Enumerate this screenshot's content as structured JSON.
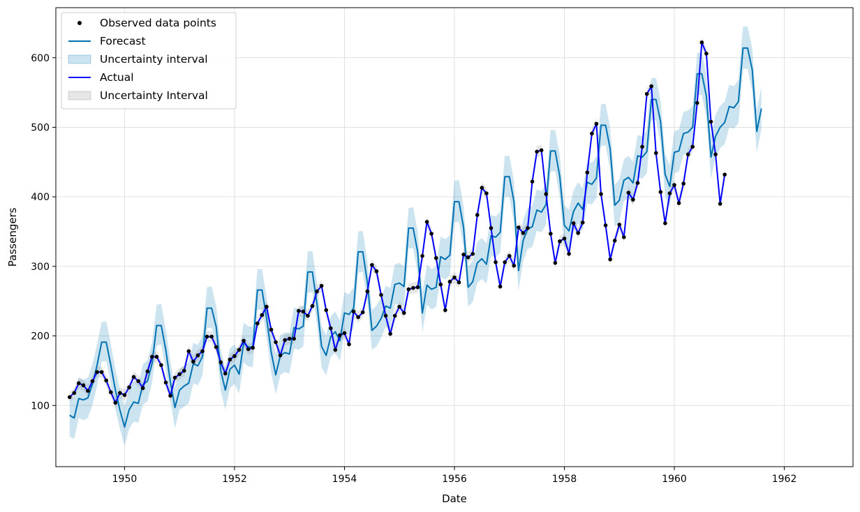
{
  "chart_data": {
    "type": "line",
    "title": "",
    "xlabel": "Date",
    "ylabel": "Passengers",
    "xlim": [
      1948.75,
      1963.25
    ],
    "ylim": [
      12,
      672
    ],
    "grid": true,
    "legend_position": "top-left",
    "x_ticks": [
      1950,
      1952,
      1954,
      1956,
      1958,
      1960,
      1962
    ],
    "x_tick_labels": [
      "1950",
      "1952",
      "1954",
      "1956",
      "1958",
      "1960",
      "1962"
    ],
    "y_ticks": [
      100,
      200,
      300,
      400,
      500,
      600
    ],
    "y_tick_labels": [
      "100",
      "200",
      "300",
      "400",
      "500",
      "600"
    ],
    "colors": {
      "observed": "#000000",
      "forecast": "#0072B2",
      "forecast_band": "#0072B2",
      "actual": "#0000ff",
      "actual_band": "#808080"
    },
    "legend": [
      {
        "label": "Observed data points",
        "marker": "point",
        "color": "#000000"
      },
      {
        "label": "Forecast",
        "marker": "line",
        "color": "#0072B2"
      },
      {
        "label": "Uncertainty interval",
        "marker": "patch",
        "color": "#0072B2"
      },
      {
        "label": "Actual",
        "marker": "line",
        "color": "#0000ff"
      },
      {
        "label": "Uncertainty Interval",
        "marker": "patch",
        "color": "#808080"
      }
    ],
    "x_start": 1949.0,
    "x_step": 0.08333,
    "observed_values": [
      112,
      118,
      132,
      129,
      121,
      135,
      148,
      148,
      136,
      119,
      104,
      118,
      115,
      126,
      141,
      135,
      125,
      149,
      170,
      170,
      158,
      133,
      114,
      140,
      145,
      150,
      178,
      163,
      172,
      178,
      199,
      199,
      184,
      162,
      146,
      166,
      171,
      180,
      193,
      181,
      183,
      218,
      230,
      242,
      209,
      191,
      172,
      194,
      196,
      196,
      236,
      235,
      229,
      243,
      264,
      272,
      237,
      211,
      180,
      201,
      204,
      188,
      235,
      227,
      234,
      264,
      302,
      293,
      259,
      229,
      203,
      229,
      242,
      233,
      267,
      269,
      270,
      315,
      364,
      347,
      312,
      274,
      237,
      278,
      284,
      277,
      317,
      313,
      318,
      374,
      413,
      405,
      355,
      306,
      271,
      306,
      315,
      301,
      356,
      348,
      355,
      422,
      465,
      467,
      404,
      347,
      305,
      336,
      340,
      318,
      362,
      348,
      363,
      435,
      491,
      505,
      404,
      359,
      310,
      337,
      360,
      342,
      406,
      396,
      420,
      472,
      548,
      559,
      463,
      407,
      362,
      405,
      417,
      391,
      419,
      461,
      472,
      535,
      622,
      606,
      508,
      461,
      390,
      432
    ],
    "forecast": [
      86,
      82,
      110,
      108,
      111,
      131,
      158,
      191,
      191,
      158,
      122,
      93,
      69,
      94,
      105,
      103,
      130,
      135,
      160,
      215,
      215,
      180,
      134,
      97,
      122,
      128,
      132,
      160,
      157,
      170,
      240,
      240,
      213,
      150,
      122,
      152,
      158,
      145,
      190,
      184,
      184,
      266,
      266,
      226,
      177,
      144,
      172,
      176,
      174,
      212,
      210,
      214,
      292,
      292,
      246,
      185,
      172,
      199,
      206,
      193,
      233,
      231,
      240,
      321,
      321,
      277,
      208,
      214,
      225,
      243,
      240,
      274,
      276,
      271,
      355,
      355,
      320,
      233,
      273,
      267,
      270,
      314,
      310,
      316,
      393,
      393,
      356,
      270,
      278,
      305,
      311,
      303,
      344,
      342,
      349,
      429,
      429,
      393,
      294,
      337,
      354,
      357,
      381,
      378,
      389,
      466,
      466,
      429,
      359,
      351,
      379,
      391,
      382,
      421,
      418,
      427,
      503,
      503,
      469,
      388,
      395,
      424,
      428,
      420,
      459,
      457,
      465,
      540,
      540,
      508,
      432,
      415,
      464,
      466,
      491,
      493,
      500,
      577,
      577,
      545,
      457,
      487,
      500,
      507,
      530,
      528,
      537,
      614,
      614,
      583,
      494,
      527
    ],
    "forecast_lower": [
      55,
      52,
      82,
      79,
      82,
      101,
      128,
      163,
      164,
      131,
      94,
      66,
      42,
      66,
      77,
      75,
      101,
      106,
      133,
      186,
      188,
      151,
      107,
      67,
      94,
      98,
      103,
      132,
      129,
      143,
      211,
      212,
      185,
      121,
      94,
      125,
      131,
      117,
      162,
      156,
      155,
      237,
      238,
      198,
      147,
      116,
      144,
      148,
      146,
      182,
      180,
      185,
      262,
      263,
      217,
      155,
      143,
      170,
      176,
      164,
      204,
      201,
      211,
      291,
      292,
      248,
      180,
      185,
      197,
      213,
      210,
      245,
      246,
      242,
      326,
      326,
      290,
      205,
      245,
      238,
      242,
      285,
      281,
      287,
      363,
      364,
      327,
      242,
      249,
      276,
      282,
      275,
      315,
      313,
      320,
      400,
      400,
      363,
      265,
      308,
      325,
      328,
      351,
      349,
      360,
      436,
      437,
      399,
      329,
      322,
      350,
      362,
      352,
      391,
      389,
      398,
      473,
      474,
      439,
      357,
      365,
      394,
      398,
      389,
      428,
      426,
      434,
      510,
      510,
      478,
      401,
      385,
      434,
      436,
      461,
      462,
      469,
      546,
      547,
      514,
      426,
      456,
      470,
      476,
      500,
      498,
      506,
      584,
      584,
      552,
      464,
      497
    ],
    "forecast_upper": [
      115,
      111,
      140,
      137,
      140,
      160,
      188,
      220,
      221,
      188,
      152,
      123,
      98,
      123,
      134,
      132,
      159,
      165,
      190,
      245,
      246,
      209,
      164,
      125,
      152,
      157,
      162,
      190,
      187,
      200,
      270,
      271,
      243,
      180,
      152,
      182,
      188,
      174,
      219,
      214,
      213,
      296,
      296,
      256,
      206,
      174,
      201,
      205,
      204,
      241,
      239,
      244,
      322,
      322,
      276,
      214,
      201,
      228,
      235,
      222,
      263,
      260,
      270,
      350,
      351,
      307,
      237,
      244,
      255,
      272,
      269,
      303,
      305,
      300,
      384,
      385,
      349,
      263,
      302,
      296,
      300,
      343,
      339,
      345,
      423,
      424,
      386,
      300,
      308,
      335,
      341,
      333,
      374,
      372,
      379,
      459,
      459,
      422,
      324,
      367,
      384,
      387,
      411,
      408,
      419,
      496,
      496,
      459,
      388,
      381,
      409,
      421,
      412,
      451,
      449,
      458,
      533,
      534,
      499,
      417,
      425,
      454,
      459,
      450,
      489,
      487,
      496,
      571,
      571,
      539,
      462,
      445,
      494,
      497,
      522,
      524,
      531,
      607,
      608,
      576,
      488,
      518,
      531,
      537,
      561,
      559,
      568,
      645,
      645,
      614,
      525,
      558
    ],
    "actual_lower": [
      105,
      111,
      124,
      121,
      113,
      127,
      140,
      140,
      128,
      111,
      96,
      110,
      107,
      118,
      133,
      127,
      117,
      141,
      162,
      162,
      150,
      125,
      106,
      132,
      137,
      142,
      170,
      155,
      164,
      170,
      191,
      191,
      176,
      154,
      138,
      158,
      163,
      172,
      185,
      173,
      175,
      210,
      222,
      234,
      201,
      183,
      164,
      186,
      188,
      188,
      228,
      227,
      221,
      235,
      256,
      264,
      229,
      203,
      172,
      193,
      196,
      180,
      227,
      219,
      226,
      256,
      294,
      285,
      251,
      221,
      195,
      221,
      234,
      225,
      259,
      261,
      262,
      307,
      356,
      339,
      304,
      266,
      229,
      270,
      276,
      269,
      309,
      305,
      310,
      366,
      405,
      397,
      347,
      298,
      263,
      298,
      307,
      293,
      348,
      340,
      347,
      414,
      457,
      459,
      396,
      339,
      297,
      328,
      332,
      310,
      354,
      340,
      355,
      427,
      483,
      497,
      396,
      351,
      302,
      329,
      352,
      334,
      398,
      388,
      412,
      464,
      540,
      551,
      455,
      399,
      354,
      397,
      409,
      383,
      411,
      453,
      464,
      527,
      614,
      598,
      500,
      453,
      382,
      424
    ],
    "actual_upper": [
      119,
      125,
      140,
      137,
      129,
      143,
      156,
      156,
      144,
      127,
      112,
      126,
      123,
      134,
      149,
      143,
      133,
      157,
      178,
      178,
      166,
      141,
      122,
      148,
      153,
      158,
      186,
      171,
      180,
      186,
      207,
      207,
      192,
      170,
      154,
      174,
      179,
      188,
      201,
      189,
      191,
      226,
      238,
      250,
      217,
      199,
      180,
      202,
      204,
      204,
      244,
      243,
      237,
      251,
      272,
      280,
      245,
      219,
      188,
      209,
      212,
      196,
      243,
      235,
      242,
      272,
      310,
      301,
      267,
      237,
      211,
      237,
      250,
      241,
      275,
      277,
      278,
      323,
      372,
      355,
      320,
      282,
      245,
      286,
      292,
      285,
      325,
      321,
      326,
      382,
      421,
      413,
      363,
      314,
      279,
      314,
      323,
      309,
      364,
      356,
      363,
      430,
      473,
      475,
      412,
      355,
      313,
      344,
      348,
      326,
      370,
      356,
      371,
      443,
      499,
      513,
      412,
      367,
      318,
      345,
      368,
      350,
      414,
      404,
      428,
      480,
      556,
      567,
      471,
      415,
      370,
      413,
      425,
      399,
      427,
      469,
      480,
      543,
      630,
      614,
      516,
      469,
      398,
      440
    ]
  }
}
